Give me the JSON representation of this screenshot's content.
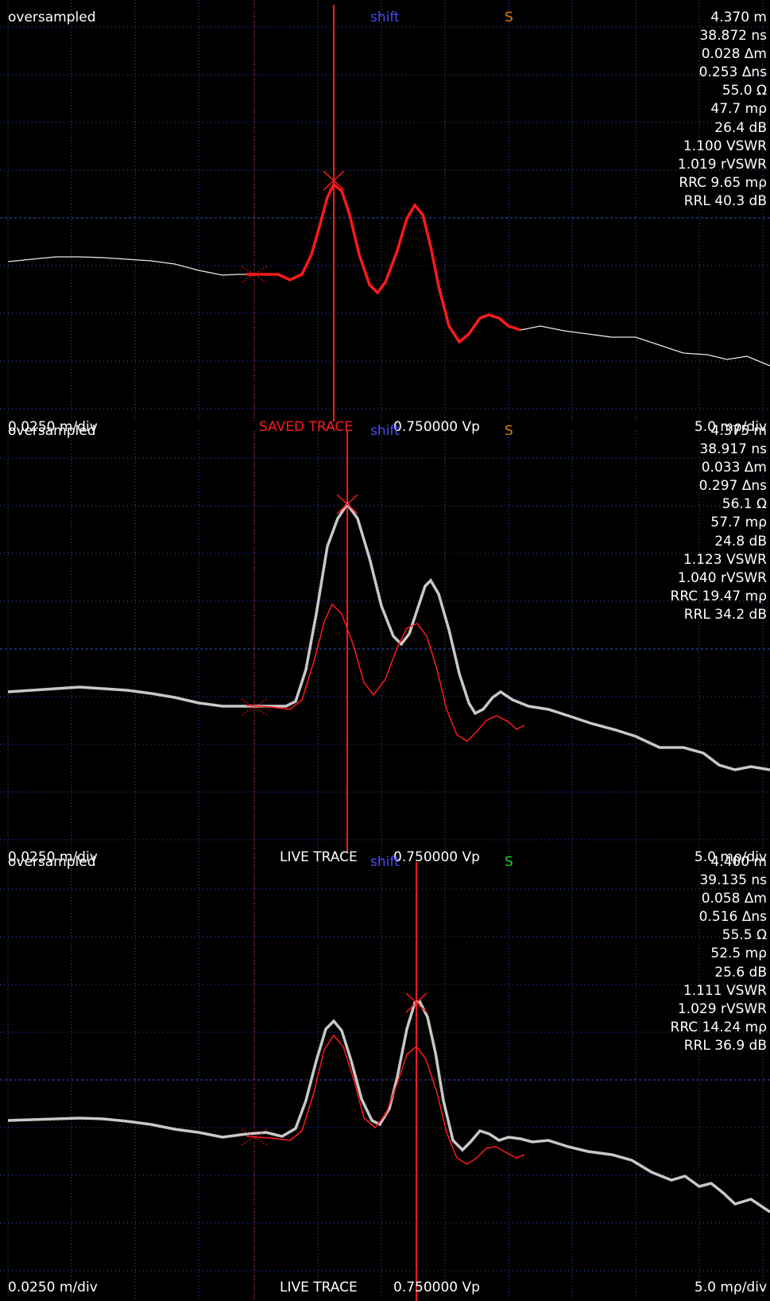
{
  "colors": {
    "background": "#000000",
    "grid": "#2f55c8",
    "text": "#ffffff",
    "saved_trace": "#ff1a1a",
    "live_trace": "#c8c8c8",
    "shift_label": "#4a4aff",
    "s_orange": "#e07a10",
    "s_green": "#19d419",
    "cursor": "#ff1a1a"
  },
  "panels": [
    {
      "mode": "oversampled",
      "shift": "shift",
      "s_flag": "S",
      "s_color": "orange",
      "readouts": [
        "4.370 m",
        "38.872 ns",
        "0.028 Δm",
        "0.253 Δns",
        "55.0 Ω",
        "47.7 mρ",
        "26.4 dB",
        "1.100 VSWR",
        "1.019 rVSWR",
        "RRC 9.65 mρ",
        "RRL 40.3 dB"
      ],
      "x_scale": "0.0250 m/div",
      "trace_name": "SAVED TRACE",
      "amplitude": "0.750000 Vp",
      "y_scale": "5.0 mρ/div"
    },
    {
      "mode": "oversampled",
      "shift": "shift",
      "s_flag": "S",
      "s_color": "orange",
      "readouts": [
        "4.375 m",
        "38.917 ns",
        "0.033 Δm",
        "0.297 Δns",
        "56.1 Ω",
        "57.7 mρ",
        "24.8 dB",
        "1.123 VSWR",
        "1.040 rVSWR",
        "RRC 19.47 mρ",
        "RRL 34.2 dB"
      ],
      "x_scale": "0.0250 m/div",
      "trace_name": "LIVE TRACE",
      "amplitude": "0.750000 Vp",
      "y_scale": "5.0 mρ/div"
    },
    {
      "mode": "oversampled",
      "shift": "shift",
      "s_flag": "S",
      "s_color": "green",
      "readouts": [
        "4.400 m",
        "39.135 ns",
        "0.058 Δm",
        "0.516 Δns",
        "55.5 Ω",
        "52.5 mρ",
        "25.6 dB",
        "1.111 VSWR",
        "1.029 rVSWR",
        "RRC 14.24 mρ",
        "RRL 36.9 dB"
      ],
      "x_scale": "0.0250 m/div",
      "trace_name": "LIVE TRACE",
      "amplitude": "0.750000 Vp",
      "y_scale": "5.0 mρ/div"
    }
  ]
}
